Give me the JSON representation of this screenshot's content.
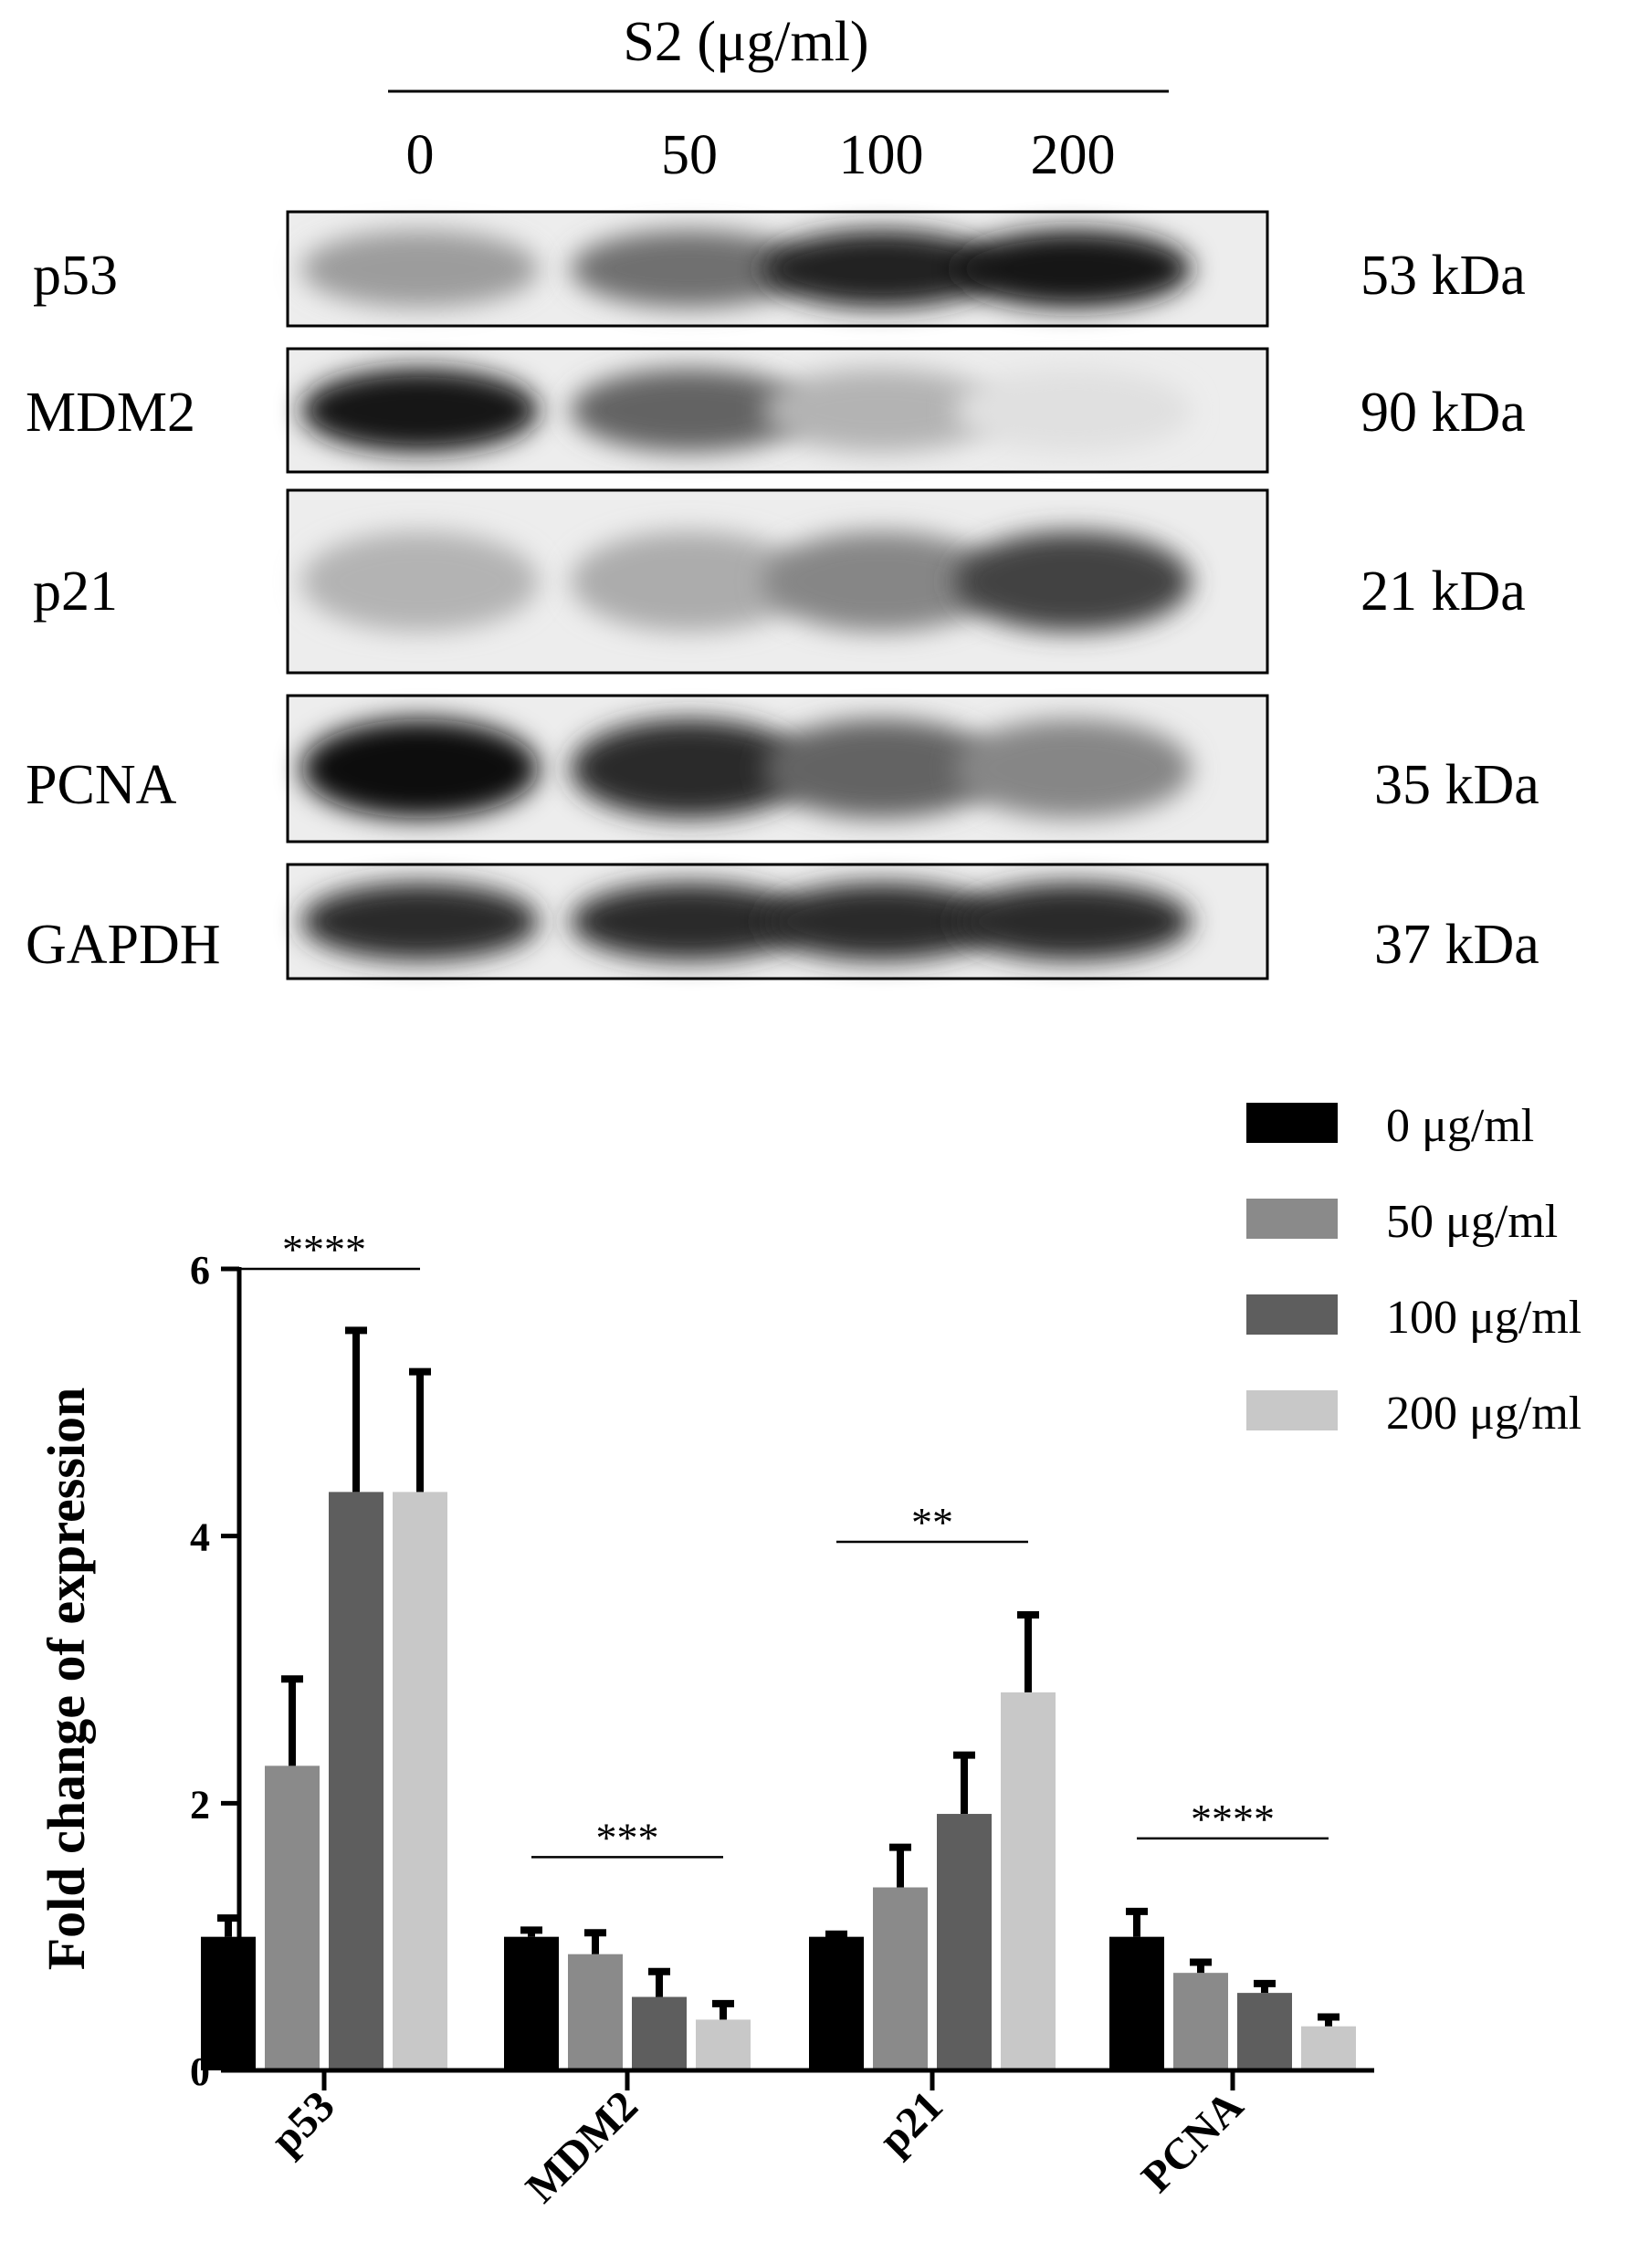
{
  "blot": {
    "treatment_label": "S2 (μg/ml)",
    "doses": [
      "0",
      "50",
      "100",
      "200"
    ],
    "rows": [
      {
        "protein": "p53",
        "size": "53 kDa",
        "intensity": [
          0.35,
          0.55,
          0.9,
          0.95
        ]
      },
      {
        "protein": "MDM2",
        "size": "90 kDa",
        "intensity": [
          0.95,
          0.6,
          0.25,
          0.05
        ]
      },
      {
        "protein": "p21",
        "size": "21 kDa",
        "intensity": [
          0.25,
          0.28,
          0.45,
          0.75
        ]
      },
      {
        "protein": "PCNA",
        "size": "35 kDa",
        "intensity": [
          1.0,
          0.85,
          0.6,
          0.45
        ]
      },
      {
        "protein": "GAPDH",
        "size": "37 kDa",
        "intensity": [
          0.85,
          0.85,
          0.85,
          0.85
        ]
      }
    ]
  },
  "chart_data": {
    "type": "bar",
    "categories": [
      "p53",
      "MDM2",
      "p21",
      "PCNA"
    ],
    "ylabel": "Fold change of expression",
    "xlabel": "",
    "ylim": [
      0,
      6
    ],
    "yticks": [
      "0",
      "2",
      "4",
      "6"
    ],
    "legend_position": "top-right",
    "series": [
      {
        "name": "0 μg/ml",
        "color": "#000000",
        "values": [
          1.0,
          1.0,
          1.0,
          1.0
        ],
        "errors": [
          0.14,
          0.05,
          0.02,
          0.19
        ]
      },
      {
        "name": "50 μg/ml",
        "color": "#8a8a8a",
        "values": [
          2.28,
          0.87,
          1.37,
          0.73
        ],
        "errors": [
          0.65,
          0.16,
          0.3,
          0.08
        ]
      },
      {
        "name": "100 μg/ml",
        "color": "#5e5e5e",
        "values": [
          4.33,
          0.55,
          1.92,
          0.58
        ],
        "errors": [
          1.21,
          0.19,
          0.44,
          0.07
        ]
      },
      {
        "name": "200 μg/ml",
        "color": "#c8c8c8",
        "values": [
          4.33,
          0.38,
          2.83,
          0.33
        ],
        "errors": [
          0.9,
          0.12,
          0.58,
          0.07
        ]
      }
    ],
    "significance": [
      "****",
      "***",
      "**",
      "****"
    ]
  }
}
